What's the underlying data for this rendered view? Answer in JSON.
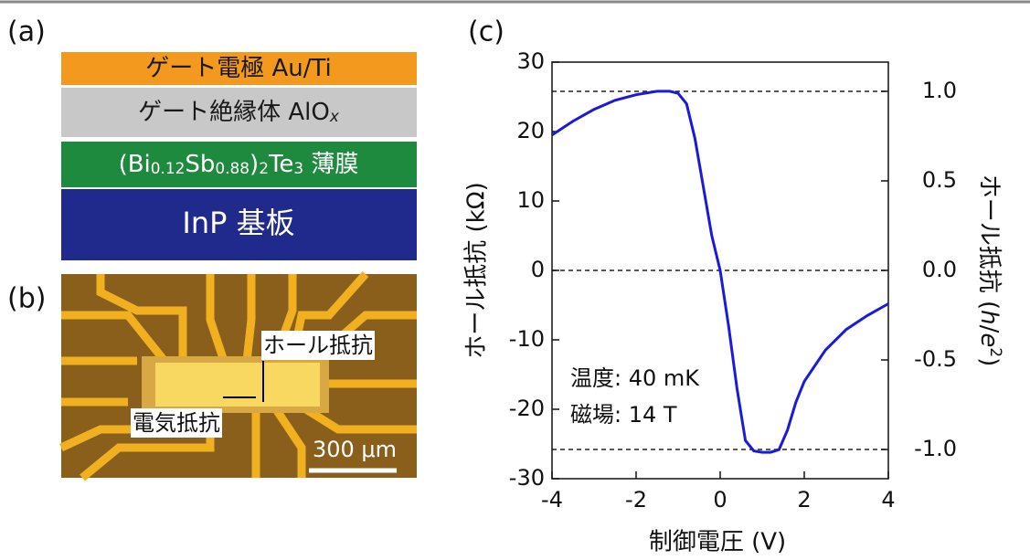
{
  "panel_a": {
    "label": "(a)",
    "layers": [
      {
        "color": "#f39a1e",
        "text_color": "#1a1a1a",
        "parts": [
          {
            "text": "ゲート電極 Au/Ti"
          }
        ]
      },
      {
        "color": "#c8c8c8",
        "text_color": "#1a1a1a",
        "parts": [
          {
            "text": "ゲート絶縁体 AlO"
          },
          {
            "text": "x",
            "style": "sub-italic"
          }
        ]
      },
      {
        "color": "#1e8a3e",
        "text_color": "#ffffff",
        "parts": [
          {
            "text": "(Bi"
          },
          {
            "text": "0.12",
            "style": "sub"
          },
          {
            "text": "Sb"
          },
          {
            "text": "0.88",
            "style": "sub"
          },
          {
            "text": ")"
          },
          {
            "text": "2",
            "style": "sub"
          },
          {
            "text": "Te"
          },
          {
            "text": "3",
            "style": "sub"
          },
          {
            "text": " 薄膜"
          }
        ]
      },
      {
        "color": "#202a8c",
        "text_color": "#ffffff",
        "parts": [
          {
            "text": "InP 基板"
          }
        ]
      }
    ]
  },
  "panel_b": {
    "label": "(b)",
    "hall_label": "ホール抵抗",
    "resistance_label": "電気抵抗",
    "scale_label": "300 μm"
  },
  "panel_c": {
    "label": "(c)"
  },
  "chart_data": {
    "type": "line",
    "x_label": "制御電圧 (V)",
    "y_label": "ホール抵抗 (kΩ)",
    "y2_label_parts": [
      {
        "text": "ホール抵抗 ("
      },
      {
        "text": "h",
        "style": "italic"
      },
      {
        "text": "/"
      },
      {
        "text": "e",
        "style": "italic"
      },
      {
        "text": "2",
        "style": "sup"
      },
      {
        "text": ")"
      }
    ],
    "annotations": [
      "温度: 40 mK",
      "磁場: 14 T"
    ],
    "x": [
      -4,
      -3.5,
      -3,
      -2.5,
      -2,
      -1.5,
      -1.2,
      -1,
      -0.8,
      -0.6,
      -0.4,
      -0.2,
      0,
      0.2,
      0.4,
      0.6,
      0.8,
      1,
      1.2,
      1.4,
      1.6,
      1.8,
      2,
      2.5,
      3,
      3.5,
      4
    ],
    "series": [
      {
        "color": "#1a1adc",
        "values": [
          19.5,
          21.5,
          23.2,
          24.5,
          25.3,
          25.8,
          25.8,
          25.5,
          24,
          19,
          12,
          5,
          0,
          -8,
          -17,
          -24.5,
          -26,
          -26.2,
          -26.2,
          -25.8,
          -23,
          -19,
          -16,
          -11.5,
          -8.5,
          -6.5,
          -4.8
        ]
      }
    ],
    "xlim": [
      -4,
      4
    ],
    "xticks": [
      -4,
      -2,
      0,
      2,
      4
    ],
    "ylim": [
      -30,
      30
    ],
    "yticks": [
      -30,
      -20,
      -10,
      0,
      10,
      20,
      30
    ],
    "y2lim": [
      -1.163,
      1.163
    ],
    "y2ticks": [
      {
        "value": -1,
        "label": "-1.0"
      },
      {
        "value": -0.5,
        "label": "-0.5"
      },
      {
        "value": 0,
        "label": "0.0"
      },
      {
        "value": 0.5,
        "label": "0.5"
      },
      {
        "value": 1,
        "label": "1.0"
      }
    ],
    "reference_lines_y2": [
      -1,
      0,
      1
    ]
  }
}
